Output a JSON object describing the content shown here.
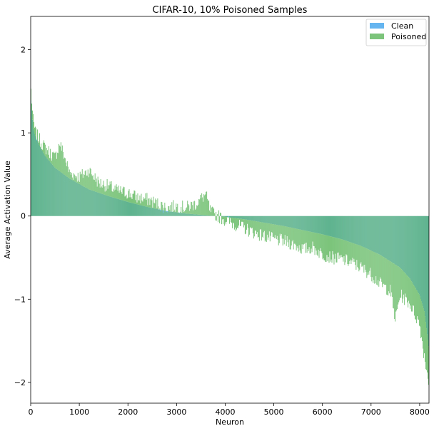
{
  "chart_data": {
    "type": "bar",
    "title": "CIFAR-10, 10% Poisoned Samples",
    "xlabel": "Neuron",
    "ylabel": "Average Activation Value",
    "xlim": [
      0,
      8192
    ],
    "ylim": [
      -2.25,
      2.4
    ],
    "x_ticks": [
      "0",
      "1000",
      "2000",
      "3000",
      "4000",
      "5000",
      "6000",
      "7000",
      "8000"
    ],
    "y_ticks": [
      "−2",
      "−1",
      "0",
      "1",
      "2"
    ],
    "grid": false,
    "legend": {
      "position": "top-right",
      "entries": [
        "Clean",
        "Poisoned"
      ]
    },
    "colors": {
      "Clean": "#64b5f0",
      "Poisoned": "#7cc47c",
      "overlap": "#5fb38f"
    },
    "series": [
      {
        "name": "Clean",
        "description": "neurons sorted by descending clean activation; smooth monotone curve",
        "x": [
          0,
          50,
          100,
          200,
          300,
          500,
          800,
          1200,
          1600,
          2000,
          2400,
          2800,
          3200,
          3600,
          4000,
          4400,
          4800,
          5200,
          5600,
          6000,
          6400,
          6800,
          7200,
          7600,
          7800,
          8000,
          8100,
          8192
        ],
        "values": [
          1.45,
          1.05,
          0.95,
          0.82,
          0.72,
          0.58,
          0.45,
          0.32,
          0.24,
          0.17,
          0.11,
          0.06,
          0.03,
          0.01,
          -0.01,
          -0.04,
          -0.08,
          -0.12,
          -0.17,
          -0.22,
          -0.28,
          -0.36,
          -0.47,
          -0.62,
          -0.75,
          -0.95,
          -1.15,
          -1.6
        ]
      },
      {
        "name": "Poisoned",
        "description": "noisy bars around the clean curve",
        "x": [
          0,
          20,
          50,
          100,
          200,
          300,
          500,
          600,
          800,
          1000,
          1200,
          1400,
          1600,
          1800,
          2000,
          2200,
          2400,
          2600,
          2800,
          3000,
          3200,
          3400,
          3600,
          3700,
          3800,
          4000,
          4200,
          4400,
          4600,
          4800,
          5000,
          5200,
          5400,
          5600,
          5800,
          6000,
          6200,
          6400,
          6600,
          6800,
          7000,
          7200,
          7400,
          7500,
          7600,
          7800,
          8000,
          8100,
          8192
        ],
        "values": [
          1.58,
          1.4,
          1.15,
          1.0,
          0.9,
          0.82,
          0.7,
          0.88,
          0.52,
          0.47,
          0.55,
          0.4,
          0.36,
          0.3,
          0.28,
          0.22,
          0.2,
          0.15,
          0.1,
          0.12,
          0.1,
          0.15,
          0.26,
          0.05,
          0.02,
          -0.05,
          -0.1,
          -0.15,
          -0.2,
          -0.24,
          -0.28,
          -0.3,
          -0.34,
          -0.4,
          -0.38,
          -0.46,
          -0.5,
          -0.52,
          -0.56,
          -0.62,
          -0.7,
          -0.82,
          -0.9,
          -1.25,
          -0.95,
          -1.05,
          -1.3,
          -1.7,
          -2.0
        ]
      }
    ]
  }
}
